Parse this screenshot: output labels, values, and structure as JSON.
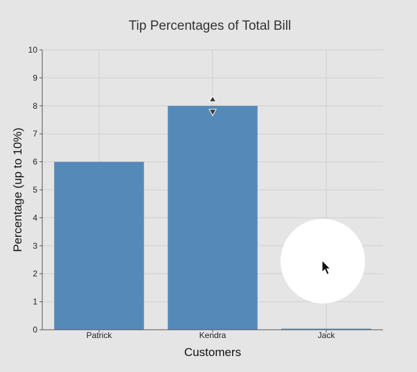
{
  "chart_data": {
    "type": "bar",
    "title": "Tip Percentages of Total Bill",
    "xlabel": "Customers",
    "ylabel": "Percentage (up to 10%)",
    "categories": [
      "Patrick",
      "Kendra",
      "Jack"
    ],
    "values": [
      6,
      8,
      0
    ],
    "ylim": [
      0,
      10
    ],
    "yticks": [
      0,
      1,
      2,
      3,
      4,
      5,
      6,
      7,
      8,
      9,
      10
    ],
    "grid": true,
    "bar_color": "#5589b8",
    "drag_handle_category": "Kendra"
  },
  "cursor": {
    "icon": "mouse-pointer-icon",
    "highlight": "click-highlight-circle"
  }
}
